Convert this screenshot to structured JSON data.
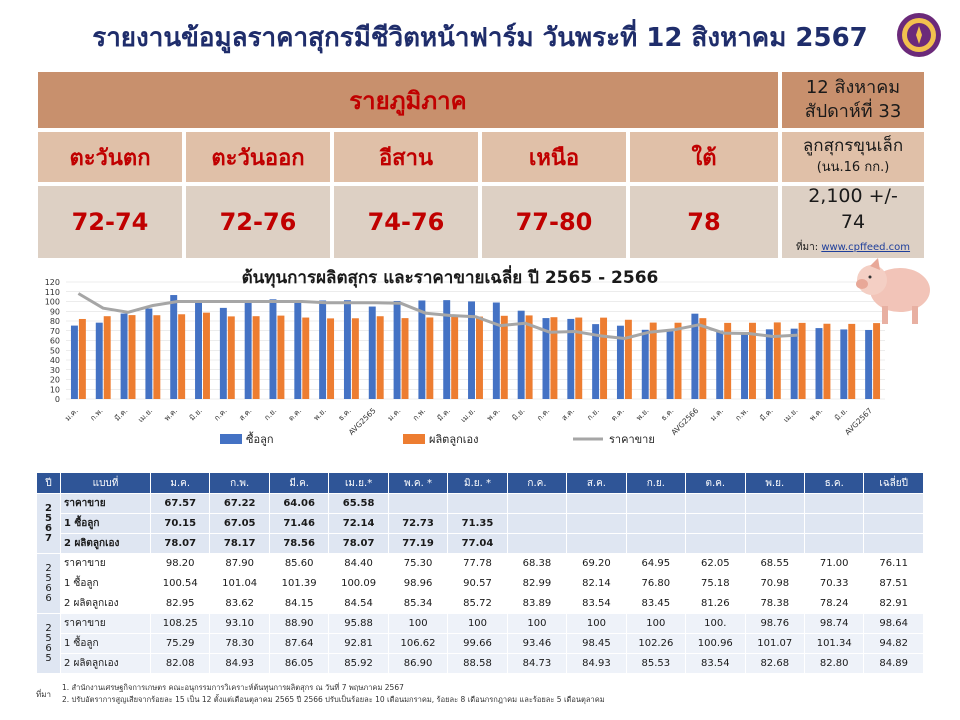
{
  "title": "รายงานข้อมูลราคาสุกรมีชีวิตหน้าฟาร์ม วันพระที่ 12 สิงหาคม 2567",
  "price_table": {
    "header": "รายภูมิภาค",
    "date": "12 สิงหาคม",
    "week": "สัปดาห์ที่ 33",
    "regions": [
      "ตะวันตก",
      "ตะวันออก",
      "อีสาน",
      "เหนือ",
      "ใต้"
    ],
    "prices": [
      "72-74",
      "72-76",
      "74-76",
      "77-80",
      "78"
    ],
    "piglet_label_1": "ลูกสุกรขุนเล็ก",
    "piglet_label_2": "(นน.16 กก.)",
    "piglet_price_1": "2,100 +/-",
    "piglet_price_2": "74",
    "source_label": "ที่มา:",
    "source_link": "www.cpffeed.com"
  },
  "chart_data": {
    "type": "bar",
    "title": "ต้นทุนการผลิตสุกร และราคาขายเฉลี่ย ปี 2565 - 2566",
    "categories": [
      "ม.ค.",
      "ก.พ.",
      "มี.ค.",
      "เม.ย.",
      "พ.ค.",
      "มิ.ย.",
      "ก.ค.",
      "ส.ค.",
      "ก.ย.",
      "ต.ค.",
      "พ.ย.",
      "ธ.ค.",
      "AVG2565",
      "ม.ค.",
      "ก.พ.",
      "มี.ค.",
      "เม.ย.",
      "พ.ค.",
      "มิ.ย.",
      "ก.ค.",
      "ส.ค.",
      "ก.ย.",
      "ต.ค.",
      "พ.ย.",
      "ธ.ค.",
      "AVG2566",
      "ม.ค.",
      "ก.พ.",
      "มี.ค.",
      "เม.ย.",
      "พ.ค.",
      "มิ.ย.",
      "AVG2567"
    ],
    "y_ticks": [
      0,
      10,
      20,
      30,
      40,
      50,
      60,
      70,
      80,
      90,
      100,
      110,
      120
    ],
    "ylim": [
      0,
      120
    ],
    "series": [
      {
        "name": "ซื้อลูก",
        "color": "#4472c4",
        "values": [
          75.29,
          78.3,
          87.64,
          92.81,
          106.62,
          99.66,
          93.46,
          98.45,
          102.26,
          100.96,
          101.07,
          101.34,
          94.82,
          100.54,
          101.04,
          101.39,
          100.09,
          98.96,
          90.57,
          82.99,
          82.14,
          76.8,
          75.18,
          70.98,
          70.33,
          87.51,
          70.15,
          67.05,
          71.46,
          72.14,
          72.73,
          71.35,
          70.81
        ]
      },
      {
        "name": "ผลิตลูกเอง",
        "color": "#ed7d31",
        "values": [
          82.08,
          84.93,
          86.05,
          85.92,
          86.9,
          88.58,
          84.73,
          84.93,
          85.53,
          83.54,
          82.68,
          82.8,
          84.89,
          82.95,
          83.62,
          84.15,
          84.54,
          85.34,
          85.72,
          83.89,
          83.54,
          83.45,
          81.26,
          78.38,
          78.24,
          82.91,
          78.07,
          78.17,
          78.56,
          78.07,
          77.19,
          77.04,
          77.85
        ]
      },
      {
        "name": "ราคาขาย",
        "color": "#a6a6a6",
        "values": [
          108.25,
          93.1,
          88.9,
          95.88,
          100,
          100,
          100,
          100,
          100,
          100,
          98.76,
          98.74,
          98.64,
          98.2,
          87.9,
          85.6,
          84.4,
          75.3,
          77.78,
          68.38,
          69.2,
          64.95,
          62.05,
          68.55,
          71.0,
          76.11,
          67.57,
          67.22,
          64.06,
          65.58,
          null,
          null,
          null
        ]
      }
    ],
    "legend": [
      "ซื้อลูก",
      "ผลิตลูกเอง",
      "ราคาขาย"
    ],
    "grid": true,
    "legend_position": "bottom"
  },
  "data_table": {
    "headers": [
      "ปี",
      "แบบที่",
      "ม.ค.",
      "ก.พ.",
      "มี.ค.",
      "เม.ย.*",
      "พ.ค. *",
      "มิ.ย. *",
      "ก.ค.",
      "ส.ค.",
      "ก.ย.",
      "ต.ค.",
      "พ.ย.",
      "ธ.ค.",
      "เฉลี่ยปี"
    ],
    "groups": [
      {
        "year": "2567",
        "rows": [
          {
            "label": "ราคาขาย",
            "values": [
              "67.57",
              "67.22",
              "64.06",
              "65.58",
              "",
              "",
              "",
              "",
              "",
              "",
              "",
              "",
              ""
            ]
          },
          {
            "label": "1 ซื้อลูก",
            "values": [
              "70.15",
              "67.05",
              "71.46",
              "72.14",
              "72.73",
              "71.35",
              "",
              "",
              "",
              "",
              "",
              "",
              ""
            ]
          },
          {
            "label": "2 ผลิตลูกเอง",
            "values": [
              "78.07",
              "78.17",
              "78.56",
              "78.07",
              "77.19",
              "77.04",
              "",
              "",
              "",
              "",
              "",
              "",
              ""
            ]
          }
        ]
      },
      {
        "year": "2566",
        "rows": [
          {
            "label": "ราคาขาย",
            "values": [
              "98.20",
              "87.90",
              "85.60",
              "84.40",
              "75.30",
              "77.78",
              "68.38",
              "69.20",
              "64.95",
              "62.05",
              "68.55",
              "71.00",
              "76.11"
            ]
          },
          {
            "label": "1 ซื้อลูก",
            "values": [
              "100.54",
              "101.04",
              "101.39",
              "100.09",
              "98.96",
              "90.57",
              "82.99",
              "82.14",
              "76.80",
              "75.18",
              "70.98",
              "70.33",
              "87.51"
            ]
          },
          {
            "label": "2 ผลิตลูกเอง",
            "values": [
              "82.95",
              "83.62",
              "84.15",
              "84.54",
              "85.34",
              "85.72",
              "83.89",
              "83.54",
              "83.45",
              "81.26",
              "78.38",
              "78.24",
              "82.91"
            ]
          }
        ]
      },
      {
        "year": "2565",
        "rows": [
          {
            "label": "ราคาขาย",
            "values": [
              "108.25",
              "93.10",
              "88.90",
              "95.88",
              "100",
              "100",
              "100",
              "100",
              "100",
              "100.",
              "98.76",
              "98.74",
              "98.64"
            ]
          },
          {
            "label": "1 ซื้อลูก",
            "values": [
              "75.29",
              "78.30",
              "87.64",
              "92.81",
              "106.62",
              "99.66",
              "93.46",
              "98.45",
              "102.26",
              "100.96",
              "101.07",
              "101.34",
              "94.82"
            ]
          },
          {
            "label": "2 ผลิตลูกเอง",
            "values": [
              "82.08",
              "84.93",
              "86.05",
              "85.92",
              "86.90",
              "88.58",
              "84.73",
              "84.93",
              "85.53",
              "83.54",
              "82.68",
              "82.80",
              "84.89"
            ]
          }
        ]
      }
    ]
  },
  "footnotes": {
    "label": "ที่มา",
    "line1": "1. สำนักงานเศรษฐกิจการเกษตร คณะอนุกรรมการวิเคราะห์ต้นทุนการผลิตสุกร ณ วันที่ 7 พฤษภาคม 2567",
    "line2": "2. ปรับอัตราการสูญเสียจากร้อยละ 15 เป็น 12 ตั้งแต่เดือนตุลาคม 2565 ปี 2566 ปรับเป็นร้อยละ 10 เดือนมกราคม, ร้อยละ 8 เดือนกรกฎาคม และร้อยละ 5 เดือนตุลาคม"
  }
}
